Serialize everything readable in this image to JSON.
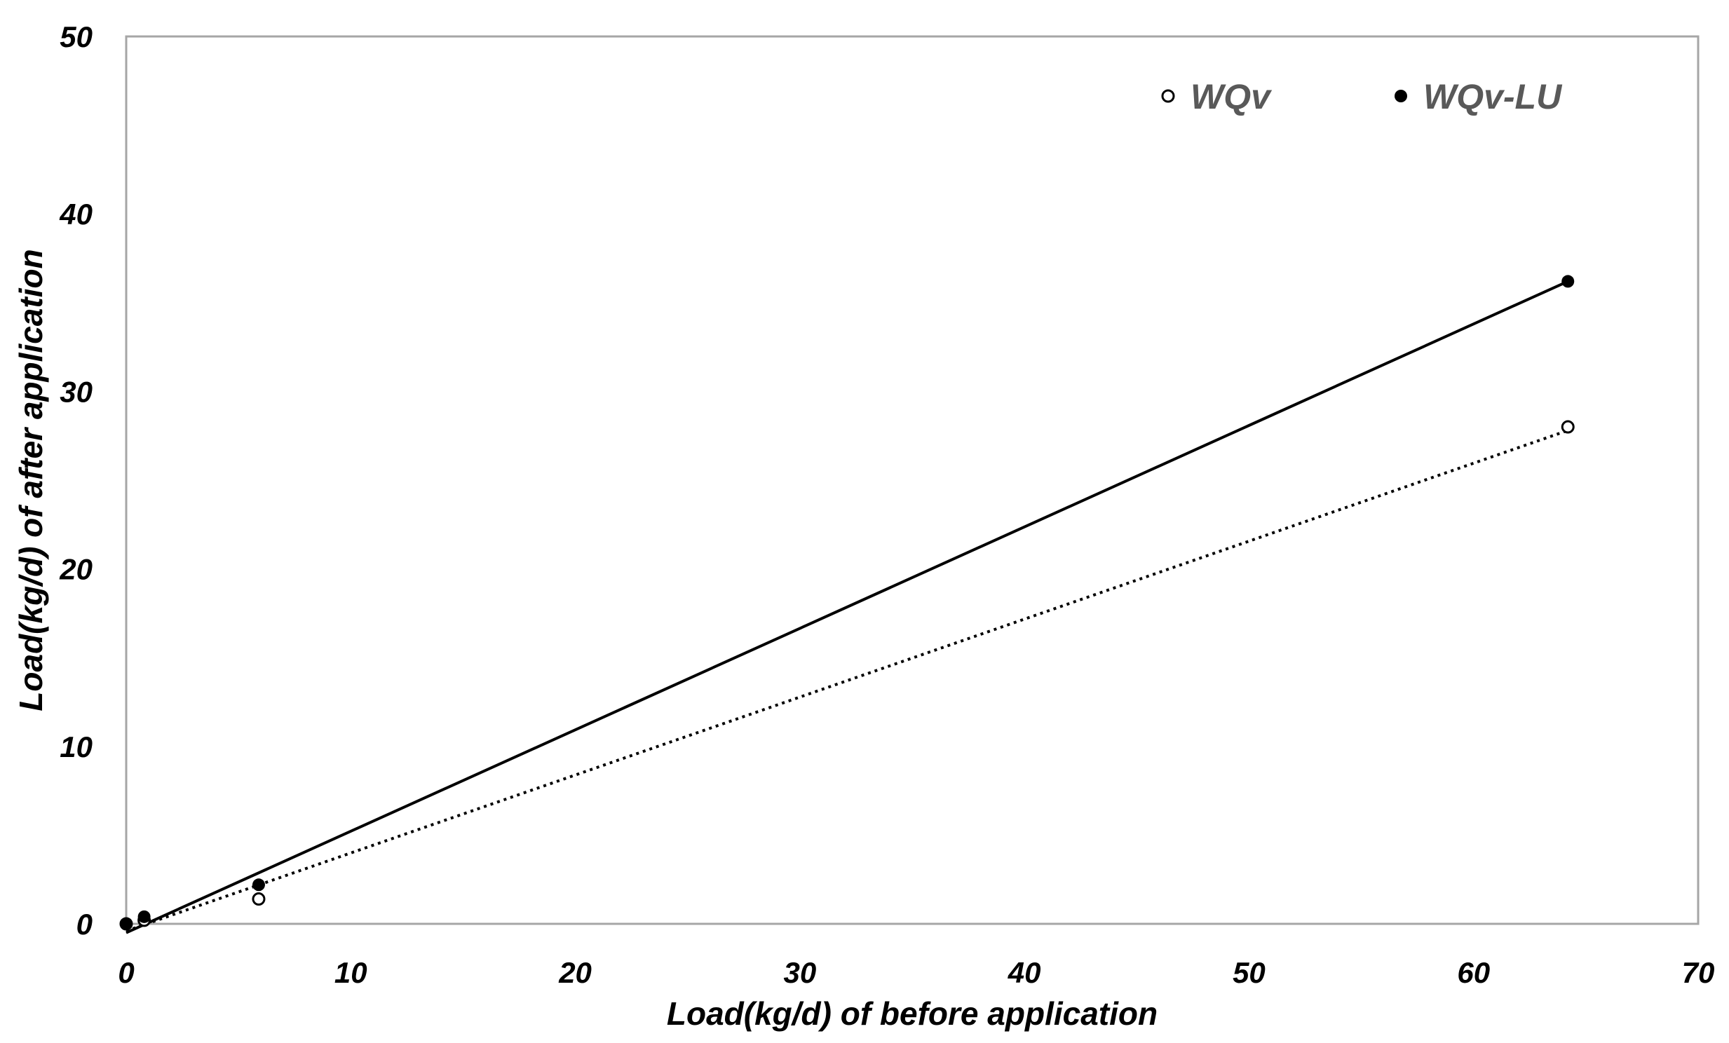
{
  "chart_data": {
    "type": "scatter",
    "xlabel": "Load(kg/d) of before application",
    "ylabel": "Load(kg/d) of after application",
    "xlim": [
      0,
      70
    ],
    "ylim": [
      0,
      50
    ],
    "x_ticks": [
      0,
      10,
      20,
      30,
      40,
      50,
      60,
      70
    ],
    "y_ticks": [
      0,
      10,
      20,
      30,
      40,
      50
    ],
    "x_tick_labels": [
      "0",
      "10",
      "20",
      "30",
      "40",
      "50",
      "60",
      "70"
    ],
    "y_tick_labels": [
      "0",
      "10",
      "20",
      "30",
      "40",
      "50"
    ],
    "grid": false,
    "legend_position": "top-right",
    "series": [
      {
        "name": "WQv",
        "marker": "open-circle",
        "trendline": "dotted",
        "x": [
          0.0,
          0.8,
          5.9,
          64.2
        ],
        "y": [
          0.0,
          0.2,
          1.4,
          28.0
        ],
        "fit": {
          "from": [
            0.0,
            -0.4
          ],
          "to": [
            64.2,
            27.8
          ]
        }
      },
      {
        "name": "WQv-LU",
        "marker": "filled-circle",
        "trendline": "solid",
        "x": [
          0.0,
          0.8,
          5.9,
          64.2
        ],
        "y": [
          0.0,
          0.4,
          2.2,
          36.2
        ],
        "fit": {
          "from": [
            0.0,
            -0.5
          ],
          "to": [
            64.2,
            36.2
          ]
        }
      }
    ],
    "colors": {
      "axis": "#a6a6a6",
      "marks": "#000000",
      "legend_text": "#595959"
    }
  }
}
